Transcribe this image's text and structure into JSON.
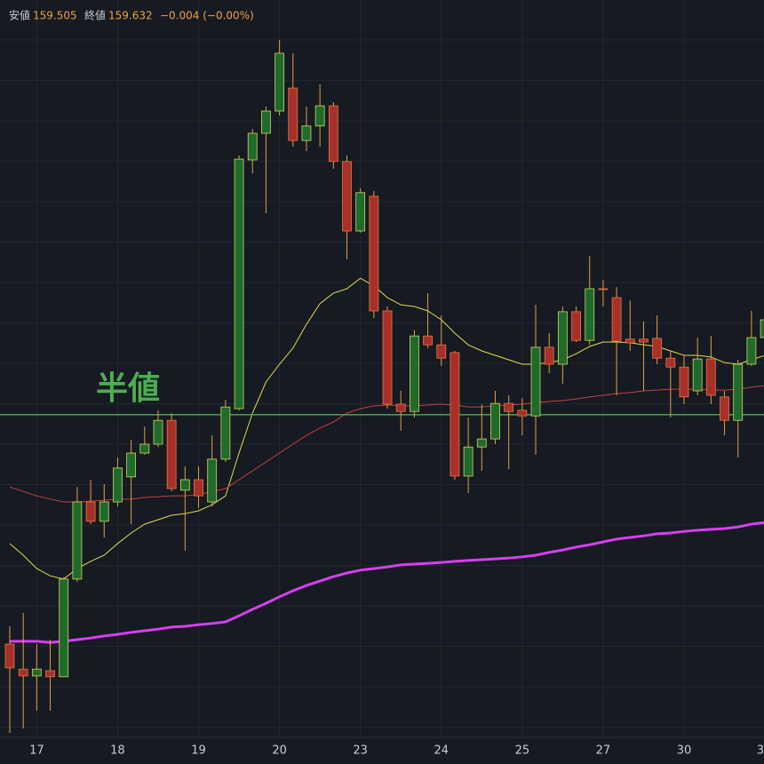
{
  "header": {
    "low_label": "安値",
    "low": "159.505",
    "close_label": "終値",
    "close": "159.632",
    "change": "−0.004 (−0.00%)"
  },
  "chart_data": {
    "type": "candlestick",
    "categories": [
      null,
      null,
      "17",
      null,
      null,
      null,
      null,
      null,
      "18",
      null,
      null,
      null,
      null,
      null,
      "19",
      null,
      null,
      null,
      null,
      null,
      "20",
      null,
      null,
      null,
      null,
      null,
      "23",
      null,
      null,
      null,
      null,
      null,
      "24",
      null,
      null,
      null,
      null,
      null,
      "25",
      null,
      null,
      null,
      null,
      null,
      "27",
      null,
      null,
      null,
      null,
      null,
      "30",
      null,
      null,
      null,
      null,
      null,
      "3"
    ],
    "open": [
      158.841,
      158.779,
      158.762,
      158.775,
      158.76,
      159.002,
      159.193,
      159.145,
      159.193,
      159.255,
      159.314,
      159.336,
      159.395,
      159.222,
      159.248,
      159.193,
      159.299,
      159.424,
      160.04,
      160.106,
      160.161,
      160.218,
      160.088,
      160.124,
      160.174,
      160.036,
      159.864,
      159.95,
      159.666,
      159.435,
      159.417,
      159.604,
      159.582,
      159.563,
      159.257,
      159.329,
      159.349,
      159.437,
      159.42,
      159.406,
      159.576,
      159.534,
      159.664,
      159.593,
      159.721,
      159.699,
      159.596,
      159.596,
      159.598,
      159.549,
      159.527,
      159.468,
      159.547,
      159.453,
      159.395,
      159.534,
      159.6
    ],
    "high": [
      158.885,
      158.918,
      158.841,
      158.852,
      159.006,
      159.23,
      159.248,
      159.237,
      159.303,
      159.347,
      159.38,
      159.42,
      159.413,
      159.281,
      159.281,
      159.358,
      159.446,
      160.051,
      160.117,
      160.172,
      160.337,
      160.304,
      160.172,
      160.227,
      160.183,
      160.051,
      159.97,
      159.963,
      159.677,
      159.468,
      159.618,
      159.71,
      159.655,
      159.567,
      159.402,
      159.435,
      159.468,
      159.457,
      159.45,
      159.681,
      159.611,
      159.677,
      159.677,
      159.802,
      159.743,
      159.725,
      159.692,
      159.64,
      159.655,
      159.567,
      159.556,
      159.6,
      159.604,
      159.468,
      159.545,
      159.666,
      159.721
    ],
    "low": [
      158.621,
      158.632,
      158.676,
      158.676,
      158.76,
      158.995,
      159.138,
      159.105,
      159.182,
      159.138,
      159.31,
      159.329,
      159.219,
      159.072,
      159.178,
      159.182,
      159.292,
      159.42,
      160.007,
      159.908,
      160.15,
      160.073,
      160.062,
      160.073,
      160.018,
      159.794,
      159.86,
      159.648,
      159.424,
      159.369,
      159.402,
      159.574,
      159.53,
      159.248,
      159.215,
      159.27,
      159.336,
      159.274,
      159.358,
      159.31,
      159.512,
      159.486,
      159.589,
      159.582,
      159.677,
      159.457,
      159.567,
      159.468,
      159.534,
      159.402,
      159.435,
      159.457,
      159.435,
      159.358,
      159.303,
      159.53,
      159.6
    ],
    "close": [
      158.782,
      158.762,
      158.779,
      158.76,
      159.002,
      159.193,
      159.145,
      159.193,
      159.277,
      159.314,
      159.336,
      159.395,
      159.226,
      159.248,
      159.208,
      159.299,
      159.428,
      160.042,
      160.106,
      160.161,
      160.304,
      160.088,
      160.124,
      160.174,
      160.036,
      159.864,
      159.959,
      159.666,
      159.435,
      159.417,
      159.604,
      159.582,
      159.549,
      159.257,
      159.329,
      159.349,
      159.437,
      159.417,
      159.406,
      159.576,
      159.534,
      159.664,
      159.593,
      159.721,
      159.719,
      159.591,
      159.587,
      159.589,
      159.549,
      159.527,
      159.453,
      159.547,
      159.457,
      159.395,
      159.534,
      159.6,
      159.644
    ],
    "up_color": "#1e6b2c",
    "down_color": "#a8302a",
    "wick_color": "#e0a040",
    "lines": [
      {
        "color": "#e3dc4a",
        "width": 1,
        "values": [
          159.09,
          159.061,
          159.028,
          159.01,
          159.002,
          159.028,
          159.046,
          159.061,
          159.09,
          159.116,
          159.138,
          159.149,
          159.16,
          159.164,
          159.171,
          159.186,
          159.208,
          159.314,
          159.413,
          159.49,
          159.534,
          159.574,
          159.633,
          159.684,
          159.71,
          159.721,
          159.747,
          159.728,
          159.699,
          159.681,
          159.677,
          159.666,
          159.644,
          159.611,
          159.582,
          159.567,
          159.556,
          159.545,
          159.534,
          159.534,
          159.538,
          159.545,
          159.56,
          159.578,
          159.589,
          159.589,
          159.587,
          159.582,
          159.578,
          159.567,
          159.556,
          159.556,
          159.552,
          159.538,
          159.534,
          159.545,
          159.556
        ]
      },
      {
        "color": "#c8403a",
        "width": 1,
        "values": [
          159.23,
          159.219,
          159.208,
          159.2,
          159.193,
          159.193,
          159.195,
          159.197,
          159.2,
          159.2,
          159.204,
          159.206,
          159.208,
          159.208,
          159.211,
          159.219,
          159.226,
          159.248,
          159.27,
          159.292,
          159.314,
          159.336,
          159.358,
          159.376,
          159.391,
          159.413,
          159.424,
          159.431,
          159.433,
          159.431,
          159.431,
          159.433,
          159.435,
          159.433,
          159.428,
          159.428,
          159.431,
          159.433,
          159.435,
          159.439,
          159.442,
          159.444,
          159.448,
          159.453,
          159.457,
          159.461,
          159.464,
          159.468,
          159.47,
          159.472,
          159.472,
          159.472,
          159.47,
          159.47,
          159.472,
          159.477,
          159.481
        ]
      },
      {
        "color": "#d63ff0",
        "width": 3,
        "values": [
          158.848,
          158.848,
          158.848,
          158.845,
          158.848,
          158.852,
          158.856,
          158.861,
          158.865,
          158.87,
          158.874,
          158.878,
          158.883,
          158.885,
          158.889,
          158.892,
          158.896,
          158.911,
          158.927,
          158.942,
          158.958,
          158.973,
          158.986,
          158.997,
          159.008,
          159.017,
          159.024,
          159.028,
          159.032,
          159.037,
          159.039,
          159.041,
          159.043,
          159.046,
          159.048,
          159.05,
          159.052,
          159.054,
          159.057,
          159.061,
          159.068,
          159.074,
          159.081,
          159.087,
          159.094,
          159.101,
          159.105,
          159.109,
          159.114,
          159.116,
          159.12,
          159.123,
          159.125,
          159.127,
          159.131,
          159.138,
          159.142
        ]
      }
    ],
    "hline": {
      "label": "半値",
      "value": 159.409,
      "color": "#4caf50"
    },
    "ylim": [
      158.61,
      160.436
    ],
    "grid": true
  }
}
